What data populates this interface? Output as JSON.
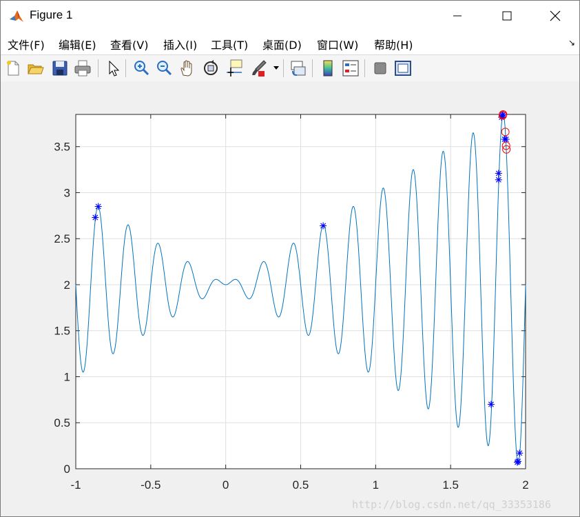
{
  "window": {
    "title": "Figure 1",
    "app_icon": "matlab-icon",
    "controls": [
      "minimize-icon",
      "maximize-icon",
      "close-icon"
    ]
  },
  "menu": [
    {
      "label": "文件(F)"
    },
    {
      "label": "编辑(E)"
    },
    {
      "label": "查看(V)"
    },
    {
      "label": "插入(I)"
    },
    {
      "label": "工具(T)"
    },
    {
      "label": "桌面(D)"
    },
    {
      "label": "窗口(W)"
    },
    {
      "label": "帮助(H)"
    }
  ],
  "toolbar": [
    "new-figure-icon",
    "open-file-icon",
    "save-icon",
    "print-icon",
    "select-arrow-icon",
    "zoom-in-icon",
    "zoom-out-icon",
    "pan-hand-icon",
    "rotate-3d-icon",
    "data-cursor-icon",
    "brush-icon",
    "link-plot-icon",
    "colorbar-icon",
    "legend-icon",
    "hide-plot-tools-icon",
    "show-plot-tools-icon"
  ],
  "watermark": "http://blog.csdn.net/qq_33353186",
  "chart_data": {
    "type": "line",
    "title": "",
    "xlabel": "",
    "ylabel": "",
    "xlim": [
      -1,
      2
    ],
    "ylim": [
      0,
      3.85
    ],
    "grid": true,
    "x_ticks": [
      -1,
      -0.5,
      0,
      0.5,
      1,
      1.5,
      2
    ],
    "x_tick_labels": [
      "-1",
      "-0.5",
      "0",
      "0.5",
      "1",
      "1.5",
      "2"
    ],
    "y_ticks": [
      0,
      0.5,
      1,
      1.5,
      2,
      2.5,
      3,
      3.5
    ],
    "y_tick_labels": [
      "0",
      "0.5",
      "1",
      "1.5",
      "2",
      "2.5",
      "3",
      "3.5"
    ],
    "series": [
      {
        "kind": "function",
        "expression": "x*sin(10*pi*x)+2",
        "x_range": [
          -1,
          2
        ],
        "color": "#0072bd"
      },
      {
        "kind": "markers",
        "marker": "asterisk",
        "color": "#0000ff",
        "points": [
          [
            -0.87,
            2.73
          ],
          [
            -0.85,
            2.85
          ],
          [
            0.65,
            2.64
          ],
          [
            1.77,
            0.7
          ],
          [
            1.82,
            3.21
          ],
          [
            1.82,
            3.14
          ],
          [
            1.84,
            3.82
          ],
          [
            1.845,
            3.84
          ],
          [
            1.85,
            3.85
          ],
          [
            1.86,
            3.58
          ],
          [
            1.87,
            3.58
          ],
          [
            1.945,
            0.07
          ],
          [
            1.95,
            0.08
          ],
          [
            1.96,
            0.17
          ]
        ]
      },
      {
        "kind": "markers",
        "marker": "circle",
        "color": "#ff0000",
        "points": [
          [
            1.85,
            3.85
          ],
          [
            1.848,
            3.84
          ],
          [
            1.865,
            3.66
          ],
          [
            1.87,
            3.51
          ],
          [
            1.872,
            3.47
          ]
        ]
      }
    ]
  }
}
